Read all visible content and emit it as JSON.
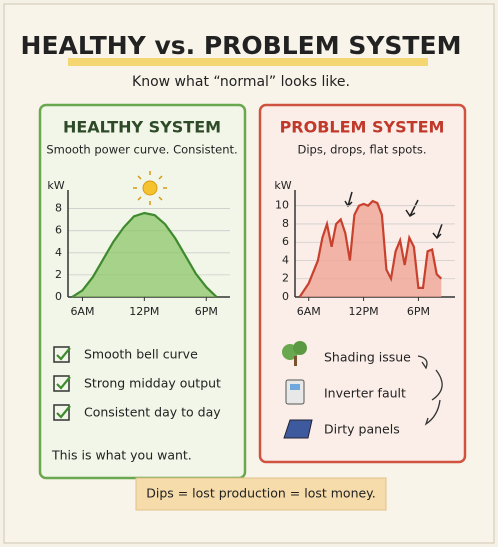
{
  "header": {
    "title": "HEALTHY vs. PROBLEM SYSTEM",
    "subtitle": "Know what “normal” looks like."
  },
  "chart_data": [
    {
      "type": "area",
      "title": "HEALTHY SYSTEM",
      "subtitle": "Smooth power curve. Consistent.",
      "y_label": "kW",
      "x": [
        5,
        6,
        7,
        8,
        9,
        10,
        11,
        12,
        13,
        14,
        15,
        16,
        17,
        18,
        19
      ],
      "values": [
        0,
        0.6,
        1.8,
        3.4,
        5.0,
        6.3,
        7.3,
        7.6,
        7.4,
        6.6,
        5.3,
        3.7,
        2.1,
        0.9,
        0
      ],
      "color": "#3f8a2e",
      "fill": "#8cc56a",
      "xlim": [
        4.6,
        20.3
      ],
      "ylim": [
        0,
        9.5
      ],
      "xticks": [
        {
          "value": 6,
          "label": "6AM"
        },
        {
          "value": 12,
          "label": "12PM"
        },
        {
          "value": 18,
          "label": "6PM"
        }
      ],
      "yticks": [
        0,
        2,
        4,
        6,
        8
      ],
      "grid": true
    },
    {
      "type": "area",
      "title": "PROBLEM SYSTEM",
      "subtitle": "Dips, drops, flat spots.",
      "y_label": "kW",
      "x": [
        5,
        6,
        7,
        7.5,
        8,
        8.5,
        9,
        9.5,
        10,
        10.5,
        11,
        11.5,
        12,
        12.5,
        13,
        13.5,
        14,
        14.5,
        15,
        15.5,
        16,
        16.5,
        17,
        17.5,
        18,
        18.5,
        19,
        19.5,
        20,
        20.5
      ],
      "values": [
        0,
        1.5,
        4,
        6.5,
        8,
        5.5,
        8,
        8.5,
        7,
        4,
        9,
        10,
        10.2,
        10,
        10.5,
        10.3,
        9,
        3,
        2,
        5,
        6.2,
        3.5,
        6.5,
        5.5,
        1,
        1,
        5,
        5.2,
        2.5,
        2
      ],
      "color": "#c8412e",
      "fill": "#eda090",
      "xlim": [
        4.5,
        22
      ],
      "ylim": [
        0,
        11.5
      ],
      "xticks": [
        {
          "value": 6,
          "label": "6AM"
        },
        {
          "value": 12,
          "label": "12PM"
        },
        {
          "value": 18,
          "label": "6PM"
        }
      ],
      "yticks": [
        0,
        2,
        4,
        6,
        8,
        10
      ],
      "grid": true
    }
  ],
  "healthy_notes": {
    "items": [
      "Smooth bell curve",
      "Strong midday output",
      "Consistent day to day"
    ],
    "footer": "This is what you want."
  },
  "problem_causes": {
    "items": [
      "Shading issue",
      "Inverter fault",
      "Dirty panels"
    ]
  },
  "callout": "Dips = lost production = lost money."
}
